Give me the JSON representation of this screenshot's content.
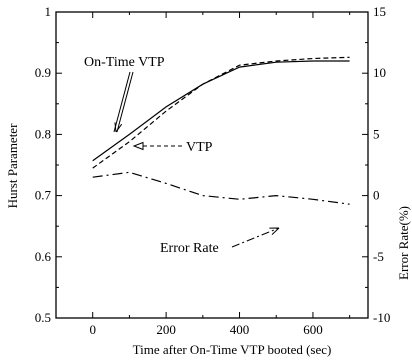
{
  "chart_data": {
    "type": "line",
    "xlabel": "Time after On-Time VTP booted (sec)",
    "ylabel_left": "Hurst Parameter",
    "ylabel_right": "Error Rate(%)",
    "xlim": [
      -100,
      750
    ],
    "ylim_left": [
      0.5,
      1.0
    ],
    "ylim_right": [
      -10,
      15
    ],
    "x_ticks": [
      0,
      200,
      400,
      600
    ],
    "y_ticks_left": [
      "0.5",
      "0.6",
      "0.7",
      "0.8",
      "0.9",
      "1"
    ],
    "y_ticks_right": [
      "-10",
      "-5",
      "0",
      "5",
      "10",
      "15"
    ],
    "grid": false,
    "series": [
      {
        "name": "On-Time VTP",
        "axis": "left",
        "style": "solid",
        "x": [
          0,
          100,
          200,
          300,
          400,
          500,
          600,
          700
        ],
        "y": [
          0.757,
          0.8,
          0.845,
          0.882,
          0.91,
          0.918,
          0.92,
          0.92
        ]
      },
      {
        "name": "VTP",
        "axis": "left",
        "style": "dashed",
        "x": [
          0,
          100,
          200,
          300,
          400,
          500,
          600,
          700
        ],
        "y": [
          0.745,
          0.788,
          0.838,
          0.882,
          0.913,
          0.92,
          0.924,
          0.926
        ]
      },
      {
        "name": "Error Rate",
        "axis": "right",
        "style": "dashdot",
        "x": [
          0,
          100,
          200,
          300,
          400,
          500,
          600,
          700
        ],
        "y": [
          1.5,
          1.9,
          1.0,
          0.0,
          -0.3,
          0.0,
          -0.3,
          -0.7
        ]
      }
    ],
    "annotations": [
      {
        "text": "On-Time VTP",
        "target_series": "On-Time VTP"
      },
      {
        "text": "VTP",
        "target_series": "VTP"
      },
      {
        "text": "Error Rate",
        "target_series": "Error Rate"
      }
    ]
  }
}
